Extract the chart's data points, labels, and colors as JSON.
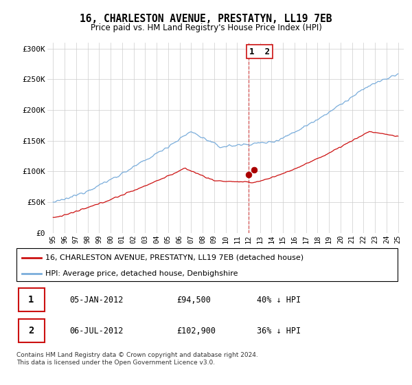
{
  "title": "16, CHARLESTON AVENUE, PRESTATYN, LL19 7EB",
  "subtitle": "Price paid vs. HM Land Registry's House Price Index (HPI)",
  "ylim": [
    0,
    310000
  ],
  "yticks": [
    0,
    50000,
    100000,
    150000,
    200000,
    250000,
    300000
  ],
  "ytick_labels": [
    "£0",
    "£50K",
    "£100K",
    "£150K",
    "£200K",
    "£250K",
    "£300K"
  ],
  "hpi_color": "#7aaddb",
  "price_color": "#cc1111",
  "marker_color": "#aa0000",
  "vline_color": "#cc1111",
  "grid_color": "#cccccc",
  "background_color": "#ffffff",
  "legend_label_price": "16, CHARLESTON AVENUE, PRESTATYN, LL19 7EB (detached house)",
  "legend_label_hpi": "HPI: Average price, detached house, Denbighshire",
  "transaction1_num": "1",
  "transaction1_date": "05-JAN-2012",
  "transaction1_price": "£94,500",
  "transaction1_hpi": "40% ↓ HPI",
  "transaction2_num": "2",
  "transaction2_date": "06-JUL-2012",
  "transaction2_price": "£102,900",
  "transaction2_hpi": "36% ↓ HPI",
  "footer": "Contains HM Land Registry data © Crown copyright and database right 2024.\nThis data is licensed under the Open Government Licence v3.0.",
  "t1_year": 2012.01,
  "t1_price": 94500,
  "t2_year": 2012.5,
  "t2_price": 102900,
  "vline_year": 2012.0
}
